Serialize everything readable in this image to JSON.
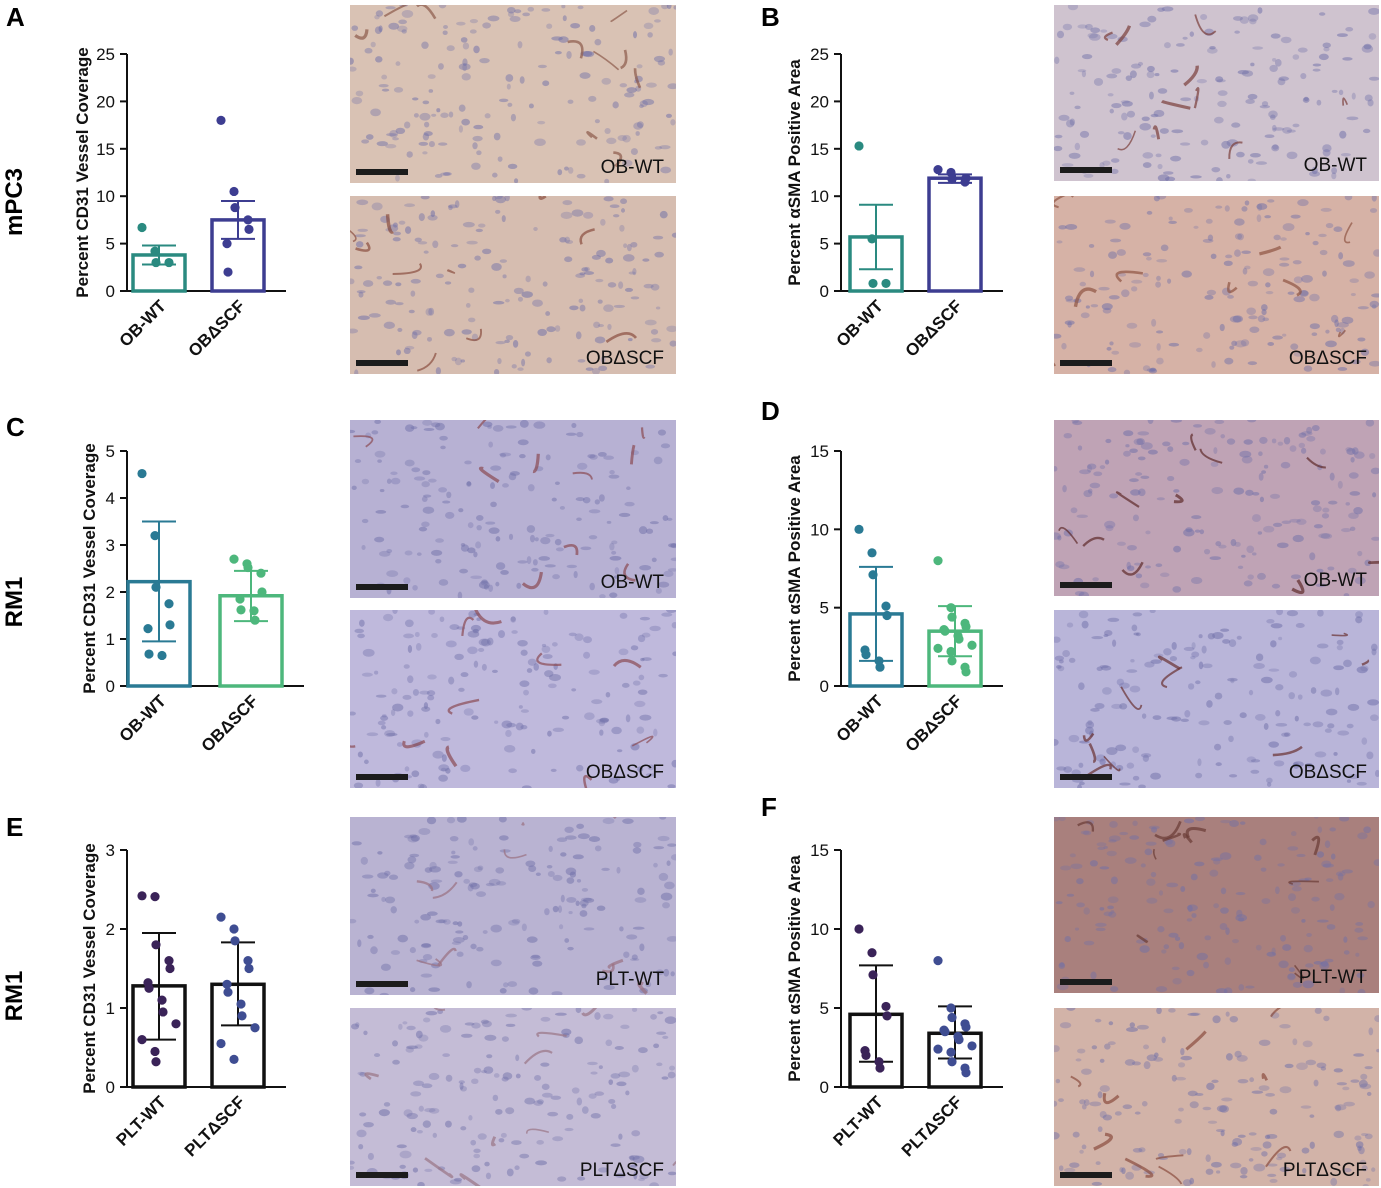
{
  "row_labels": [
    "mPC3",
    "RM1",
    "RM1"
  ],
  "panels": [
    {
      "letter": "A"
    },
    {
      "letter": "B"
    },
    {
      "letter": "C"
    },
    {
      "letter": "D"
    },
    {
      "letter": "E"
    },
    {
      "letter": "F"
    }
  ],
  "micrographs": [
    {
      "caption": "OB-WT",
      "base": "#d9c2b4",
      "vein": "#8c5a4a"
    },
    {
      "caption": "OBΔSCF",
      "base": "#d6bdb0",
      "vein": "#8a4f40"
    },
    {
      "caption": "OB-WT",
      "base": "#cfc3cf",
      "vein": "#7a3e3a"
    },
    {
      "caption": "OBΔSCF",
      "base": "#d6b2a6",
      "vein": "#8f5443"
    },
    {
      "caption": "OB-WT",
      "base": "#b7b1d3",
      "vein": "#8a4a52"
    },
    {
      "caption": "OBΔSCF",
      "base": "#bfb9dc",
      "vein": "#8a4a52"
    },
    {
      "caption": "OB-WT",
      "base": "#bfa3b5",
      "vein": "#5e2a2a"
    },
    {
      "caption": "OBΔSCF",
      "base": "#b9b5d9",
      "vein": "#6a3030"
    },
    {
      "caption": "PLT-WT",
      "base": "#b9b3d2",
      "vein": "#9a7080"
    },
    {
      "caption": "PLTΔSCF",
      "base": "#c4bcd6",
      "vein": "#9a7585"
    },
    {
      "caption": "PLT-WT",
      "base": "#a9807d",
      "vein": "#6a3a35"
    },
    {
      "caption": "PLTΔSCF",
      "base": "#d2b3a8",
      "vein": "#8a4d3f"
    }
  ],
  "chart_data": [
    {
      "panel": "A",
      "type": "bar",
      "ylabel": "Percent CD31 Vessel Coverage",
      "categories": [
        "OB-WT",
        "OBΔSCF"
      ],
      "ylim": [
        0,
        25
      ],
      "yticks": [
        0,
        5,
        10,
        15,
        20,
        25
      ],
      "error_bar": "sem",
      "bars": [
        {
          "category": "OB-WT",
          "mean": 3.8,
          "err_low": 2.8,
          "err_high": 4.8,
          "color": "#2a8a80",
          "points": [
            6.7,
            4.2,
            3.0,
            3.0
          ]
        },
        {
          "category": "OBΔSCF",
          "mean": 7.5,
          "err_low": 5.5,
          "err_high": 9.5,
          "color": "#3d3d91",
          "points": [
            18.0,
            10.5,
            8.8,
            7.5,
            6.5,
            5.0,
            2.0
          ]
        }
      ]
    },
    {
      "panel": "B",
      "type": "bar",
      "ylabel": "Percent αSMA Positive Area",
      "categories": [
        "OB-WT",
        "OBΔSCF"
      ],
      "ylim": [
        0,
        25
      ],
      "yticks": [
        0,
        5,
        10,
        15,
        20,
        25
      ],
      "error_bar": "sem",
      "bars": [
        {
          "category": "OB-WT",
          "mean": 5.7,
          "err_low": 2.3,
          "err_high": 9.1,
          "color": "#2a8a80",
          "points": [
            15.3,
            5.5,
            0.8,
            0.8
          ]
        },
        {
          "category": "OBΔSCF",
          "mean": 11.9,
          "err_low": 11.4,
          "err_high": 12.3,
          "color": "#3d3d91",
          "points": [
            12.8,
            12.5,
            11.8,
            11.5,
            11.9
          ]
        }
      ]
    },
    {
      "panel": "C",
      "type": "bar",
      "ylabel": "Percent CD31 Vessel Coverage",
      "categories": [
        "OB-WT",
        "OBΔSCF"
      ],
      "ylim": [
        0,
        5
      ],
      "yticks": [
        0,
        1,
        2,
        3,
        4,
        5
      ],
      "error_bar": "sd",
      "bars": [
        {
          "category": "OB-WT",
          "mean": 2.22,
          "err_low": 0.95,
          "err_high": 3.5,
          "color": "#2a7a94",
          "points": [
            4.52,
            3.2,
            2.1,
            1.75,
            1.3,
            1.22,
            0.68,
            0.65
          ]
        },
        {
          "category": "OBΔSCF",
          "mean": 1.92,
          "err_low": 1.38,
          "err_high": 2.45,
          "color": "#4db77c",
          "points": [
            2.7,
            2.6,
            2.52,
            2.4,
            2.0,
            1.85,
            1.62,
            1.6,
            1.4
          ]
        }
      ]
    },
    {
      "panel": "D",
      "type": "bar",
      "ylabel": "Percent αSMA Positive Area",
      "categories": [
        "OB-WT",
        "OBΔSCF"
      ],
      "ylim": [
        0,
        15
      ],
      "yticks": [
        0,
        5,
        10,
        15
      ],
      "error_bar": "sd",
      "bars": [
        {
          "category": "OB-WT",
          "mean": 4.6,
          "err_low": 1.6,
          "err_high": 7.6,
          "color": "#2a7a94",
          "points": [
            10.0,
            8.5,
            7.1,
            5.1,
            4.5,
            2.3,
            2.0,
            1.6,
            1.2
          ]
        },
        {
          "category": "OBΔSCF",
          "mean": 3.5,
          "err_low": 1.9,
          "err_high": 5.1,
          "color": "#4db77c",
          "points": [
            8.0,
            5.0,
            4.4,
            4.0,
            3.8,
            3.6,
            3.5,
            3.2,
            3.0,
            2.6,
            2.4,
            2.2,
            1.6,
            1.2,
            0.9
          ]
        }
      ]
    },
    {
      "panel": "E",
      "type": "bar",
      "ylabel": "Percent CD31 Vessel Coverage",
      "categories": [
        "PLT-WT",
        "PLTΔSCF"
      ],
      "ylim": [
        0,
        3
      ],
      "yticks": [
        0,
        1,
        2,
        3
      ],
      "error_bar": "sd",
      "bars": [
        {
          "category": "PLT-WT",
          "mean": 1.28,
          "err_low": 0.6,
          "err_high": 1.95,
          "color": "#111111",
          "points": [
            2.42,
            2.41,
            1.8,
            1.6,
            1.5,
            1.32,
            1.25,
            1.1,
            0.95,
            0.8,
            0.6,
            0.45,
            0.32
          ]
        },
        {
          "category": "PLTΔSCF",
          "mean": 1.3,
          "err_low": 0.78,
          "err_high": 1.83,
          "color": "#111111",
          "points": [
            2.15,
            2.0,
            1.85,
            1.6,
            1.5,
            1.3,
            1.2,
            1.05,
            0.9,
            0.75,
            0.55,
            0.35
          ]
        }
      ]
    },
    {
      "panel": "F",
      "type": "bar",
      "ylabel": "Percent αSMA Positive Area",
      "categories": [
        "PLT-WT",
        "PLTΔSCF"
      ],
      "ylim": [
        0,
        15
      ],
      "yticks": [
        0,
        5,
        10,
        15
      ],
      "error_bar": "sd",
      "bars": [
        {
          "category": "PLT-WT",
          "mean": 4.6,
          "err_low": 1.6,
          "err_high": 7.7,
          "color": "#111111",
          "points": [
            10.0,
            8.5,
            7.1,
            5.1,
            4.5,
            2.3,
            2.0,
            1.6,
            1.2
          ]
        },
        {
          "category": "PLTΔSCF",
          "mean": 3.4,
          "err_low": 1.8,
          "err_high": 5.1,
          "color": "#111111",
          "points": [
            8.0,
            5.0,
            4.4,
            4.0,
            3.8,
            3.6,
            3.5,
            3.2,
            3.0,
            2.6,
            2.4,
            2.2,
            1.6,
            1.2,
            0.9
          ]
        }
      ]
    }
  ],
  "dot_colors": {
    "A": [
      "#2a8a80",
      "#3d3d91"
    ],
    "B": [
      "#2a8a80",
      "#3d3d91"
    ],
    "C": [
      "#2a7a94",
      "#4db77c"
    ],
    "D": [
      "#2a7a94",
      "#4db77c"
    ],
    "E": [
      "#3a2358",
      "#3f4d92"
    ],
    "F": [
      "#3a2358",
      "#3f4d92"
    ]
  }
}
